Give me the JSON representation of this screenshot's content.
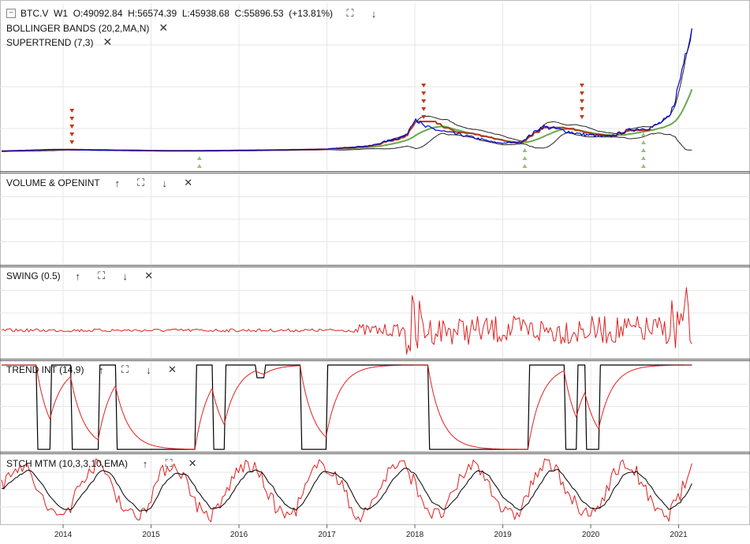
{
  "symbol_header": {
    "collapse_glyph": "−",
    "symbol": "BTC.V",
    "interval": "W1",
    "open": "O:49092.84",
    "high": "H:56574.39",
    "low": "L:45938.68",
    "close": "C:55896.53",
    "change": "(+13.81%)"
  },
  "overlays": [
    {
      "label": "BOLLINGER BANDS (20,2,MA,N)"
    },
    {
      "label": "SUPERTREND (7,3)"
    }
  ],
  "panes": [
    {
      "label": "VOLUME & OPENINT"
    },
    {
      "label": "SWING (0.5)"
    },
    {
      "label": "TREND INT (14,9)"
    },
    {
      "label": "STCH MTM (10,3,3,10,EMA)"
    }
  ],
  "icons": {
    "up": "arrow-up-icon",
    "down": "arrow-down-icon",
    "maximize": "maximize-icon",
    "close": "close-icon"
  },
  "colors": {
    "price": "#0000cc",
    "bb_band": "#222222",
    "bb_mid": "#6aa84f",
    "supertrend": "#b03a1a",
    "swing": "#e02020",
    "trend_main": "#000000",
    "trend_signal": "#e02020",
    "stoch_main": "#000000",
    "stoch_signal": "#e02020",
    "sell_marker": "#c0391b",
    "buy_marker": "#93c47d",
    "grid": "#e6e6e6"
  },
  "chart_data": {
    "type": "line",
    "x_axis": {
      "ticks": [
        "2014",
        "2015",
        "2016",
        "2017",
        "2018",
        "2019",
        "2020",
        "2021"
      ]
    },
    "price_series": {
      "name": "BTC.V",
      "x": [
        2013.3,
        2013.9,
        2014.5,
        2015.0,
        2015.5,
        2016.0,
        2016.5,
        2017.0,
        2017.5,
        2017.9,
        2018.0,
        2018.1,
        2018.3,
        2018.6,
        2018.9,
        2019.0,
        2019.2,
        2019.45,
        2019.6,
        2019.9,
        2020.2,
        2020.45,
        2020.7,
        2020.9,
        2021.0,
        2021.1,
        2021.15
      ],
      "y": [
        100,
        800,
        500,
        250,
        250,
        430,
        650,
        1000,
        2500,
        7000,
        15000,
        11000,
        9000,
        6700,
        4000,
        3700,
        4000,
        11000,
        10000,
        7500,
        6500,
        9500,
        10700,
        15000,
        29000,
        48000,
        55896
      ]
    },
    "signals": {
      "sell_years": [
        2014.1,
        2018.1,
        2019.9
      ],
      "buy_years": [
        2015.55,
        2019.25,
        2020.6
      ]
    }
  }
}
